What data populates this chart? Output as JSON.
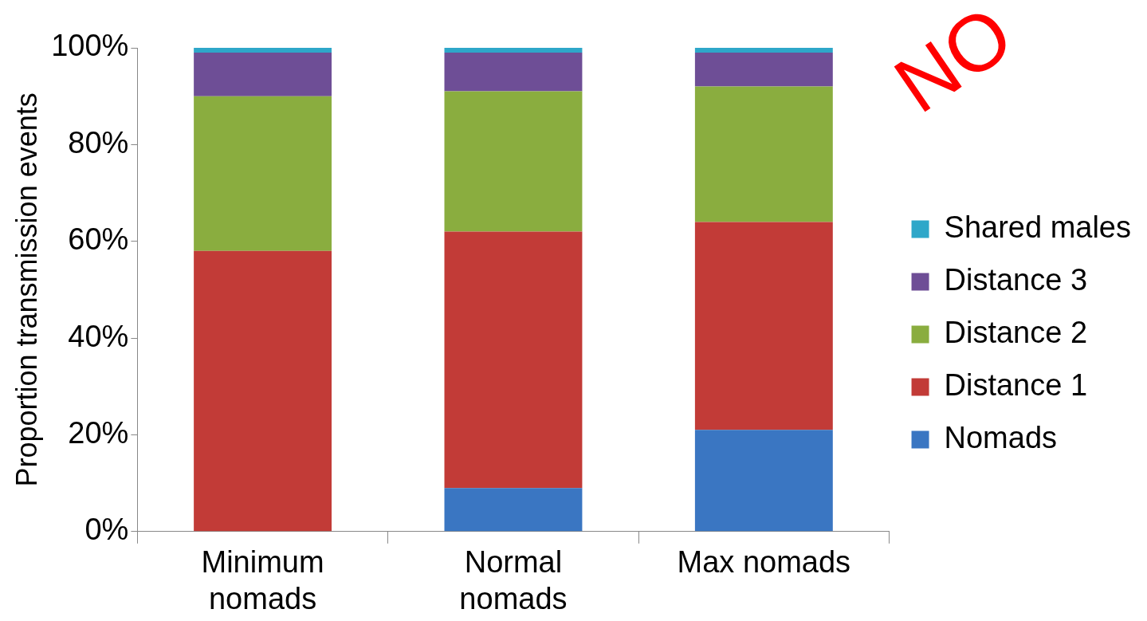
{
  "chart_data": {
    "type": "bar",
    "stacked": true,
    "categories": [
      "Minimum nomads",
      "Normal nomads",
      "Max nomads"
    ],
    "series": [
      {
        "name": "Nomads",
        "color": "#3a76c2",
        "values": [
          0,
          9,
          21
        ]
      },
      {
        "name": "Distance 1",
        "color": "#c23b37",
        "values": [
          58,
          53,
          43
        ]
      },
      {
        "name": "Distance 2",
        "color": "#8aad3f",
        "values": [
          32,
          29,
          28
        ]
      },
      {
        "name": "Distance 3",
        "color": "#6e4e96",
        "values": [
          9,
          8,
          7
        ]
      },
      {
        "name": "Shared males",
        "color": "#2ea7c9",
        "values": [
          1,
          1,
          1
        ]
      }
    ],
    "ylabel": "Proportion transmission events",
    "ylim": [
      0,
      100
    ],
    "yticks": [
      {
        "value": 0,
        "label": "0%"
      },
      {
        "value": 20,
        "label": "20%"
      },
      {
        "value": 40,
        "label": "40%"
      },
      {
        "value": 60,
        "label": "60%"
      },
      {
        "value": 80,
        "label": "80%"
      },
      {
        "value": 100,
        "label": "100%"
      }
    ],
    "grid": false,
    "legend": "right",
    "annotations": [
      "NO"
    ]
  }
}
